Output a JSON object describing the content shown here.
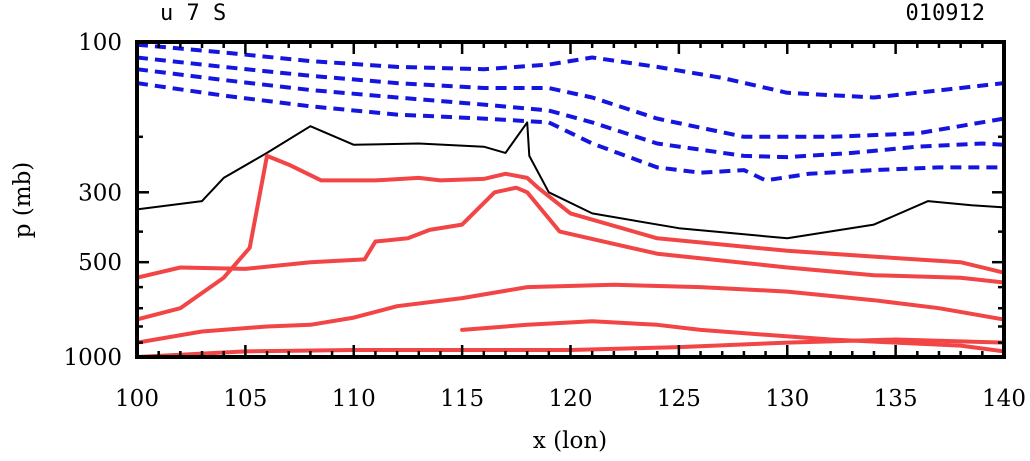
{
  "header": {
    "left_label": "u 7 S",
    "right_label": "010912"
  },
  "chart_data": {
    "type": "contour",
    "title": "u 7 S",
    "date_label": "010912",
    "xlabel": "x (lon)",
    "ylabel": "p (mb)",
    "xlim": [
      100,
      140
    ],
    "ylim": [
      1000,
      100
    ],
    "y_scale": "log",
    "x_ticks": [
      100,
      105,
      110,
      115,
      120,
      125,
      130,
      135,
      140
    ],
    "x_tick_labels": [
      "100",
      "105",
      "110",
      "115",
      "120",
      "125",
      "130",
      "135",
      "140"
    ],
    "y_ticks": [
      1000,
      500,
      300,
      100
    ],
    "y_tick_labels": [
      "1000",
      "500",
      "300",
      "100"
    ],
    "grid": false,
    "contour_styles": {
      "positive": {
        "color": "#f24545",
        "style": "solid"
      },
      "zero": {
        "color": "#000000",
        "style": "solid thin"
      },
      "negative": {
        "color": "#1515e0",
        "style": "dashed"
      }
    },
    "contours": [
      {
        "sign": "zero",
        "points": [
          [
            100,
            340
          ],
          [
            103,
            320
          ],
          [
            104,
            270
          ],
          [
            106,
            225
          ],
          [
            108,
            185
          ],
          [
            110,
            212
          ],
          [
            113,
            210
          ],
          [
            116,
            215
          ],
          [
            117,
            225
          ],
          [
            118,
            180
          ],
          [
            118.1,
            230
          ],
          [
            119,
            300
          ],
          [
            121,
            350
          ],
          [
            125,
            390
          ],
          [
            130,
            420
          ],
          [
            134,
            380
          ],
          [
            136.5,
            320
          ],
          [
            138.5,
            330
          ],
          [
            140,
            335
          ]
        ]
      },
      {
        "sign": "positive",
        "points": [
          [
            100,
            760
          ],
          [
            102,
            700
          ],
          [
            104,
            560
          ],
          [
            105.2,
            450
          ],
          [
            106,
            230
          ],
          [
            107,
            245
          ],
          [
            108.5,
            275
          ],
          [
            111,
            275
          ],
          [
            113,
            270
          ],
          [
            114,
            275
          ],
          [
            116,
            272
          ],
          [
            117,
            262
          ],
          [
            118,
            270
          ],
          [
            118.5,
            290
          ],
          [
            120,
            350
          ],
          [
            124,
            420
          ],
          [
            130,
            460
          ],
          [
            134,
            480
          ],
          [
            138,
            500
          ],
          [
            140,
            540
          ]
        ]
      },
      {
        "sign": "positive",
        "points": [
          [
            100,
            560
          ],
          [
            102,
            520
          ],
          [
            105,
            525
          ],
          [
            108,
            500
          ],
          [
            110.5,
            490
          ],
          [
            111,
            430
          ],
          [
            112.5,
            420
          ],
          [
            113.5,
            395
          ],
          [
            115,
            380
          ],
          [
            116.5,
            300
          ],
          [
            117.5,
            290
          ],
          [
            118,
            300
          ],
          [
            119.5,
            400
          ],
          [
            124,
            470
          ],
          [
            130,
            520
          ],
          [
            134,
            550
          ],
          [
            138,
            560
          ],
          [
            140,
            580
          ]
        ]
      },
      {
        "sign": "positive",
        "points": [
          [
            100,
            900
          ],
          [
            103,
            830
          ],
          [
            106,
            800
          ],
          [
            108,
            790
          ],
          [
            110,
            750
          ],
          [
            112,
            690
          ],
          [
            115,
            650
          ],
          [
            118,
            600
          ],
          [
            122,
            590
          ],
          [
            126,
            600
          ],
          [
            130,
            620
          ],
          [
            134,
            660
          ],
          [
            137,
            700
          ],
          [
            140,
            760
          ]
        ]
      },
      {
        "sign": "positive",
        "points": [
          [
            115,
            820
          ],
          [
            118,
            790
          ],
          [
            121,
            770
          ],
          [
            124,
            790
          ],
          [
            126,
            820
          ],
          [
            129,
            850
          ],
          [
            132,
            880
          ],
          [
            135,
            900
          ],
          [
            138,
            920
          ],
          [
            140,
            960
          ]
        ]
      },
      {
        "sign": "positive",
        "points": [
          [
            100,
            1000
          ],
          [
            105,
            960
          ],
          [
            110,
            950
          ],
          [
            115,
            950
          ],
          [
            120,
            950
          ],
          [
            125,
            930
          ],
          [
            130,
            900
          ],
          [
            135,
            880
          ],
          [
            140,
            900
          ]
        ]
      },
      {
        "sign": "negative",
        "points": [
          [
            100,
            102
          ],
          [
            104,
            108
          ],
          [
            108,
            115
          ],
          [
            112,
            120
          ],
          [
            116,
            122
          ],
          [
            119,
            118
          ],
          [
            121,
            112
          ],
          [
            124,
            120
          ],
          [
            127,
            130
          ],
          [
            130,
            145
          ],
          [
            134,
            150
          ],
          [
            138,
            140
          ],
          [
            140,
            135
          ]
        ]
      },
      {
        "sign": "negative",
        "points": [
          [
            100,
            112
          ],
          [
            104,
            120
          ],
          [
            108,
            128
          ],
          [
            112,
            135
          ],
          [
            116,
            140
          ],
          [
            119,
            140
          ],
          [
            121,
            150
          ],
          [
            124,
            175
          ],
          [
            128,
            200
          ],
          [
            132,
            200
          ],
          [
            136,
            195
          ],
          [
            140,
            175
          ]
        ]
      },
      {
        "sign": "negative",
        "points": [
          [
            100,
            122
          ],
          [
            104,
            132
          ],
          [
            108,
            142
          ],
          [
            112,
            150
          ],
          [
            116,
            158
          ],
          [
            119,
            165
          ],
          [
            121,
            180
          ],
          [
            124,
            210
          ],
          [
            128,
            230
          ],
          [
            130,
            232
          ],
          [
            133,
            225
          ],
          [
            136,
            215
          ],
          [
            139,
            210
          ],
          [
            140,
            212
          ]
        ]
      },
      {
        "sign": "negative",
        "points": [
          [
            100,
            135
          ],
          [
            104,
            148
          ],
          [
            108,
            160
          ],
          [
            112,
            170
          ],
          [
            116,
            175
          ],
          [
            119,
            180
          ],
          [
            121,
            210
          ],
          [
            124,
            250
          ],
          [
            126,
            260
          ],
          [
            128,
            255
          ],
          [
            129,
            275
          ],
          [
            131,
            262
          ],
          [
            134,
            255
          ],
          [
            137,
            250
          ],
          [
            140,
            250
          ]
        ]
      }
    ]
  }
}
